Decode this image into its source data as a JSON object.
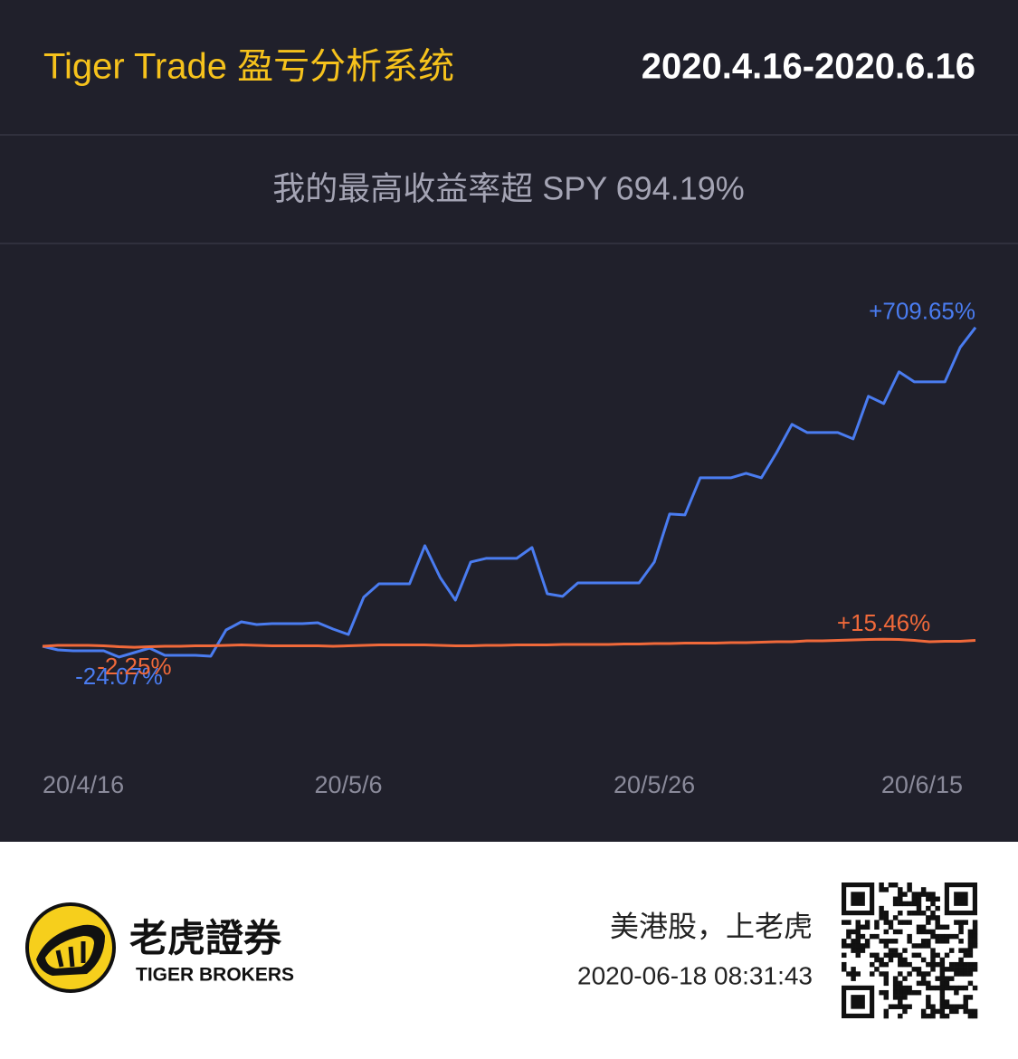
{
  "header": {
    "title": "Tiger Trade 盈亏分析系统",
    "date_range": "2020.4.16-2020.6.16"
  },
  "summary": "我的最高收益率超 SPY 694.19%",
  "footer": {
    "brand": "老虎證券",
    "brand_en": "TIGER BROKERS",
    "slogan": "美港股，上老虎",
    "timestamp": "2020-06-18 08:31:43"
  },
  "chart_data": {
    "type": "line",
    "categories": [
      "20/4/16",
      null,
      null,
      null,
      null,
      null,
      null,
      null,
      null,
      null,
      null,
      null,
      null,
      null,
      null,
      null,
      null,
      null,
      null,
      null,
      "20/5/6",
      null,
      null,
      null,
      null,
      null,
      null,
      null,
      null,
      null,
      null,
      null,
      null,
      null,
      null,
      null,
      null,
      null,
      null,
      null,
      "20/5/26",
      null,
      null,
      null,
      null,
      null,
      null,
      null,
      null,
      null,
      null,
      null,
      null,
      null,
      null,
      null,
      null,
      null,
      null,
      null,
      "20/6/15",
      null
    ],
    "ylim": [
      -100,
      800
    ],
    "series": [
      {
        "color": "#4a7cf0",
        "values": [
          0,
          -8.1,
          -10.1,
          -10.1,
          -10.1,
          -24.07,
          -14.1,
          -4.0,
          -20.2,
          -20.2,
          -20.2,
          -22.2,
          36.3,
          54.4,
          48.4,
          50.4,
          50.4,
          50.4,
          52.4,
          38.3,
          26.2,
          108.9,
          139.1,
          139.1,
          139.1,
          223.8,
          153.2,
          102.8,
          187.5,
          195.6,
          195.6,
          195.6,
          219.8,
          116.9,
          110.9,
          141.1,
          141.1,
          141.1,
          141.1,
          141.1,
          187.5,
          294.4,
          292.3,
          375.0,
          375.0,
          375.0,
          385.1,
          375.0,
          431.5,
          494.0,
          475.8,
          475.8,
          475.8,
          461.7,
          556.5,
          540.3,
          610.9,
          588.7,
          588.7,
          588.7,
          665.3,
          709.65
        ],
        "value_labels": [
          null,
          null,
          null,
          null,
          null,
          "-24.07%",
          null,
          null,
          null,
          null,
          null,
          null,
          null,
          null,
          null,
          null,
          null,
          null,
          null,
          null,
          null,
          null,
          null,
          null,
          null,
          null,
          null,
          null,
          null,
          null,
          null,
          null,
          null,
          null,
          null,
          null,
          null,
          null,
          null,
          null,
          null,
          null,
          null,
          null,
          null,
          null,
          null,
          null,
          null,
          null,
          null,
          null,
          null,
          null,
          null,
          null,
          null,
          null,
          null,
          null,
          null,
          "+709.65%"
        ]
      },
      {
        "color": "#f0693a",
        "values": [
          0,
          2,
          2,
          2,
          1,
          -1,
          -2.25,
          -1,
          0,
          0,
          1,
          1,
          2,
          3,
          2,
          1,
          1,
          1,
          1,
          0,
          1,
          2,
          3,
          3,
          3,
          3,
          2,
          1,
          1,
          2,
          2,
          3,
          3,
          3,
          4,
          4,
          4,
          4,
          5,
          5,
          6,
          6,
          7,
          7,
          7,
          8,
          8,
          9,
          10,
          10,
          12,
          12,
          13,
          14,
          15,
          15.46,
          15,
          13,
          10,
          11,
          11,
          13
        ],
        "value_labels": [
          null,
          null,
          null,
          null,
          null,
          null,
          "-2.25%",
          null,
          null,
          null,
          null,
          null,
          null,
          null,
          null,
          null,
          null,
          null,
          null,
          null,
          null,
          null,
          null,
          null,
          null,
          null,
          null,
          null,
          null,
          null,
          null,
          null,
          null,
          null,
          null,
          null,
          null,
          null,
          null,
          null,
          null,
          null,
          null,
          null,
          null,
          null,
          null,
          null,
          null,
          null,
          null,
          null,
          null,
          null,
          null,
          "+15.46%",
          null,
          null,
          null,
          null,
          null,
          null
        ]
      }
    ]
  }
}
